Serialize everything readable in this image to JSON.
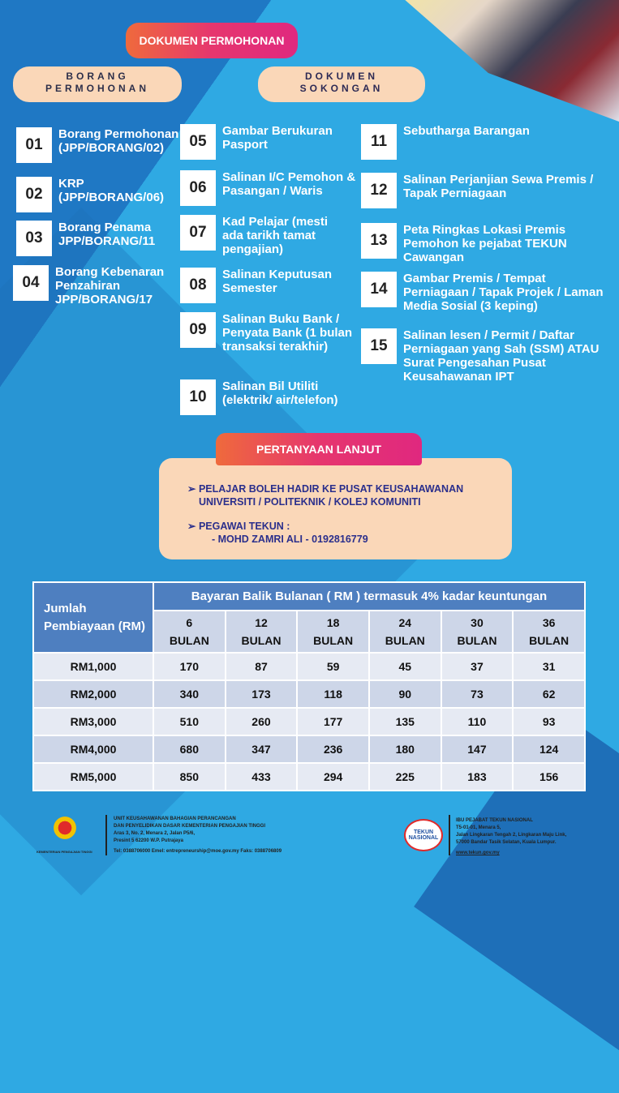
{
  "title": "DOKUMEN PERMOHONAN",
  "sections": {
    "left": "BORANG PERMOHONAN",
    "right": "DOKUMEN SOKONGAN"
  },
  "items": [
    {
      "n": "01",
      "t": "Borang Permohonan (JPP/BORANG/02)"
    },
    {
      "n": "02",
      "t": "KRP (JPP/BORANG/06)"
    },
    {
      "n": "03",
      "t": "Borang Penama JPP/BORANG/11"
    },
    {
      "n": "04",
      "t": "Borang Kebenaran Penzahiran JPP/BORANG/17"
    },
    {
      "n": "05",
      "t": "Gambar Berukuran Pasport"
    },
    {
      "n": "06",
      "t": "Salinan I/C Pemohon & Pasangan / Waris"
    },
    {
      "n": "07",
      "t": "Kad Pelajar (mesti ada tarikh tamat pengajian)"
    },
    {
      "n": "08",
      "t": "Salinan Keputusan Semester"
    },
    {
      "n": "09",
      "t": "Salinan Buku Bank / Penyata Bank (1 bulan transaksi terakhir)"
    },
    {
      "n": "10",
      "t": "Salinan Bil Utiliti (elektrik/ air/telefon)"
    },
    {
      "n": "11",
      "t": "Sebutharga Barangan"
    },
    {
      "n": "12",
      "t": "Salinan Perjanjian Sewa Premis / Tapak Perniagaan"
    },
    {
      "n": "13",
      "t": "Peta Ringkas Lokasi Premis Pemohon ke pejabat TEKUN Cawangan"
    },
    {
      "n": "14",
      "t": "Gambar Premis / Tempat Perniagaan / Tapak Projek / Laman Media Sosial (3 keping)"
    },
    {
      "n": "15",
      "t": "Salinan lesen / Permit / Daftar Perniagaan yang Sah (SSM) ATAU Surat Pengesahan Pusat Keusahawanan IPT"
    }
  ],
  "enquiry": {
    "title": "PERTANYAAN LANJUT",
    "line1": "PELAJAR BOLEH HADIR KE PUSAT KEUSAHAWANAN UNIVERSITI / POLITEKNIK / KOLEJ KOMUNITI",
    "line2": "PEGAWAI TEKUN :",
    "line3": "- MOHD ZAMRI ALI - 0192816779"
  },
  "table": {
    "corner": "Jumlah Pembiayaan (RM)",
    "header": "Bayaran Balik Bulanan ( RM ) termasuk 4% kadar keuntungan",
    "cols": [
      [
        "6",
        "BULAN"
      ],
      [
        "12",
        "BULAN"
      ],
      [
        "18",
        "BULAN"
      ],
      [
        "24",
        "BULAN"
      ],
      [
        "30",
        "BULAN"
      ],
      [
        "36",
        "BULAN"
      ]
    ],
    "rows": [
      [
        "RM1,000",
        "170",
        "87",
        "59",
        "45",
        "37",
        "31"
      ],
      [
        "RM2,000",
        "340",
        "173",
        "118",
        "90",
        "73",
        "62"
      ],
      [
        "RM3,000",
        "510",
        "260",
        "177",
        "135",
        "110",
        "93"
      ],
      [
        "RM4,000",
        "680",
        "347",
        "236",
        "180",
        "147",
        "124"
      ],
      [
        "RM5,000",
        "850",
        "433",
        "294",
        "225",
        "183",
        "156"
      ]
    ]
  },
  "footer": {
    "kpt_caption": "KEMENTERIAN PENGAJIAN TINGGI",
    "kpt": [
      "UNIT KEUSAHAWANAN BAHAGIAN PERANCANGAN",
      "DAN PENYELIDIKAN DASAR KEMENTERIAN PENGAJIAN TINGGI",
      "Aras 3, No. 2, Menara 2, Jalan P5/6,",
      "Presint 5 62200 W.P. Putrajaya"
    ],
    "kpt_contact": "Tel: 0388706000 Emel: entrepreneurship@moe.gov.my Faks: 0388706809",
    "tekun_logo": "TEKUN NASIONAL",
    "tekun": [
      "IBU PEJABAT TEKUN NASIONAL",
      "T5-01-01, Menara 5,",
      "Jalan Lingkaran Tengah 2, Lingkaran Maju Link,",
      "57000 Bandar Tasik Selatan, Kuala Lumpur."
    ],
    "tekun_web": "www.tekun.gov.my"
  },
  "colors": {
    "background": "#2fa9e3",
    "accent_gradient": "#e6366e",
    "peach": "#fad7b8",
    "table_header": "#4e7fc0"
  }
}
